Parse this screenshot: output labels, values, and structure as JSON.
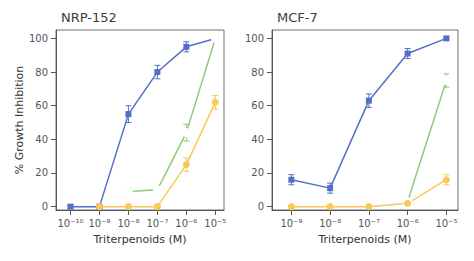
{
  "chart_data": [
    {
      "type": "line",
      "title": "NRP-152",
      "xlabel": "Triterpenoids (M)",
      "ylabel": "% Growth Inhibition",
      "xlim": [
        -10.5,
        -4.7
      ],
      "xticks": [
        {
          "value": -10,
          "label": "10⁻¹⁰"
        },
        {
          "value": -9,
          "label": "10⁻⁹"
        },
        {
          "value": -8,
          "label": "10⁻⁸"
        },
        {
          "value": -7,
          "label": "10⁻⁷"
        },
        {
          "value": -6,
          "label": "10⁻⁶"
        },
        {
          "value": -5,
          "label": "10⁻⁵"
        }
      ],
      "ylim": [
        -2,
        105
      ],
      "yticks": [
        0,
        20,
        40,
        60,
        80,
        100
      ],
      "grid": false,
      "series": [
        {
          "marker": "square",
          "x": [
            -10,
            -9,
            -8,
            -7,
            -6,
            -5
          ],
          "values": [
            0,
            0,
            55,
            80,
            95,
            100
          ],
          "errors": [
            1,
            1,
            5,
            4,
            3,
            1
          ]
        },
        {
          "marker": "open circle",
          "x": [
            -8,
            -7,
            -6,
            -5
          ],
          "values": [
            9,
            10,
            44,
            100
          ],
          "errors": [
            2,
            1,
            5,
            1
          ]
        },
        {
          "marker": "circle",
          "x": [
            -9,
            -8,
            -7,
            -6,
            -5
          ],
          "values": [
            0,
            0,
            0,
            25,
            62
          ],
          "errors": [
            1,
            1,
            1,
            4,
            4
          ]
        }
      ]
    },
    {
      "type": "line",
      "title": "MCF-7",
      "xlabel": "Triterpenoids (M)",
      "xlim": [
        -9.5,
        -4.7
      ],
      "xticks": [
        {
          "value": -9,
          "label": "10⁻⁹"
        },
        {
          "value": -8,
          "label": "10⁻⁸"
        },
        {
          "value": -7,
          "label": "10⁻⁷"
        },
        {
          "value": -6,
          "label": "10⁻⁶"
        },
        {
          "value": -5,
          "label": "10⁻⁵"
        }
      ],
      "ylim": [
        -2,
        105
      ],
      "yticks": [
        0,
        20,
        40,
        60,
        80,
        100
      ],
      "grid": false,
      "series": [
        {
          "marker": "square",
          "x": [
            -9,
            -8,
            -7,
            -6,
            -5
          ],
          "values": [
            16,
            11,
            63,
            91,
            100
          ],
          "errors": [
            3,
            3,
            4,
            3,
            1
          ]
        },
        {
          "marker": "open circle",
          "x": [
            -6,
            -5
          ],
          "values": [
            3,
            75
          ],
          "errors": [
            2,
            4
          ]
        },
        {
          "marker": "circle",
          "x": [
            -9,
            -8,
            -7,
            -6,
            -5
          ],
          "values": [
            0,
            0,
            0,
            2,
            16
          ],
          "errors": [
            1,
            1,
            1,
            1,
            3
          ]
        }
      ]
    }
  ]
}
